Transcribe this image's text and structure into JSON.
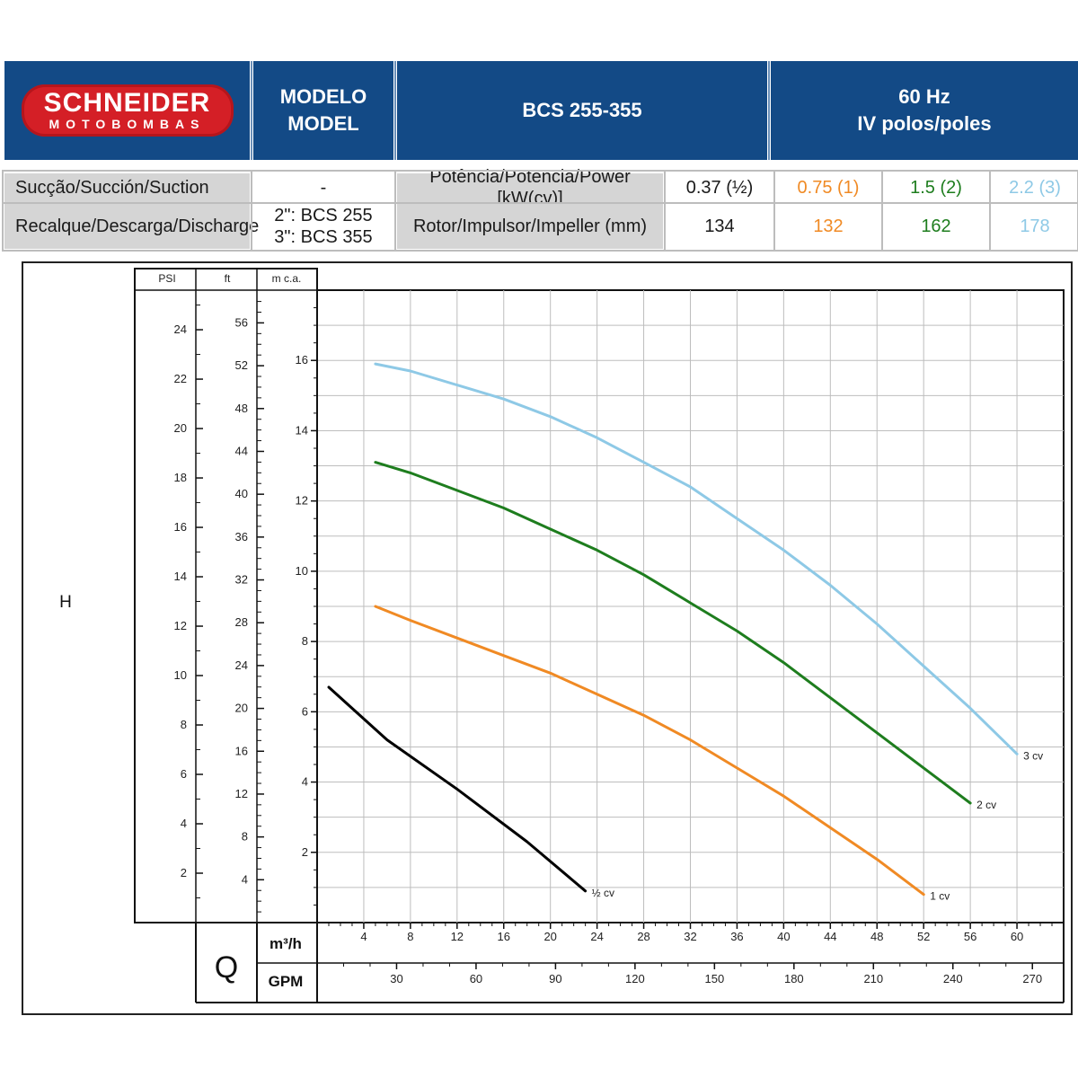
{
  "header": {
    "logo_main": "SCHNEIDER",
    "logo_sub": "MOTOBOMBAS",
    "model_line1": "MODELO",
    "model_line2": "MODEL",
    "model_range": "BCS 255-355",
    "freq_line1": "60 Hz",
    "freq_line2": "IV polos/poles"
  },
  "info_table": {
    "suction_label": "Sucção/Succión/Suction",
    "suction_value": "-",
    "discharge_label": "Recalque/Descarga/Discharge",
    "discharge_value_1": "2\": BCS 255",
    "discharge_value_2": "3\": BCS 355",
    "power_label": "Potência/Potencia/Power [kW(cv)]",
    "impeller_label": "Rotor/Impulsor/Impeller (mm)",
    "columns": [
      {
        "power": "0.37 (½)",
        "impeller": "134",
        "color": "#1a1a1a"
      },
      {
        "power": "0.75 (1)",
        "impeller": "132",
        "color": "#f08a24"
      },
      {
        "power": "1.5 (2)",
        "impeller": "162",
        "color": "#1e7d1e"
      },
      {
        "power": "2.2 (3)",
        "impeller": "178",
        "color": "#8ec9e6"
      }
    ]
  },
  "chart_data": {
    "type": "line",
    "ylabel": "H",
    "xlabel": "Q",
    "y_axes": [
      {
        "unit": "PSI",
        "ticks": [
          "2",
          "4",
          "6",
          "8",
          "10",
          "12",
          "14",
          "16",
          "18",
          "20",
          "22",
          "24"
        ]
      },
      {
        "unit": "ft",
        "ticks": [
          "4",
          "8",
          "12",
          "16",
          "20",
          "24",
          "28",
          "32",
          "36",
          "40",
          "44",
          "48",
          "52",
          "56"
        ]
      },
      {
        "unit": "m c.a.",
        "ticks": [
          "2",
          "4",
          "6",
          "8",
          "10",
          "12",
          "14",
          "16"
        ],
        "range": [
          0,
          18
        ]
      }
    ],
    "x_axes": [
      {
        "unit": "m³/h",
        "ticks": [
          "4",
          "8",
          "12",
          "16",
          "20",
          "24",
          "28",
          "32",
          "36",
          "40",
          "44",
          "48",
          "52",
          "56",
          "60"
        ],
        "range": [
          0,
          64
        ]
      },
      {
        "unit": "GPM",
        "ticks": [
          "30",
          "60",
          "90",
          "120",
          "150",
          "180",
          "210",
          "240",
          "270"
        ]
      }
    ],
    "grid": true,
    "series": [
      {
        "name": "½ cv",
        "color": "#000000",
        "x": [
          1,
          6,
          12,
          18,
          23
        ],
        "y": [
          6.7,
          5.2,
          3.8,
          2.3,
          0.9
        ]
      },
      {
        "name": "1 cv",
        "color": "#f08a24",
        "x": [
          5,
          8,
          12,
          16,
          20,
          24,
          28,
          32,
          36,
          40,
          44,
          48,
          52
        ],
        "y": [
          9.0,
          8.6,
          8.1,
          7.6,
          7.1,
          6.5,
          5.9,
          5.2,
          4.4,
          3.6,
          2.7,
          1.8,
          0.8
        ]
      },
      {
        "name": "2 cv",
        "color": "#1e7d1e",
        "x": [
          5,
          8,
          12,
          16,
          20,
          24,
          28,
          32,
          36,
          40,
          44,
          48,
          52,
          56
        ],
        "y": [
          13.1,
          12.8,
          12.3,
          11.8,
          11.2,
          10.6,
          9.9,
          9.1,
          8.3,
          7.4,
          6.4,
          5.4,
          4.4,
          3.4
        ]
      },
      {
        "name": "3 cv",
        "color": "#8ec9e6",
        "x": [
          5,
          8,
          12,
          16,
          20,
          24,
          28,
          32,
          36,
          40,
          44,
          48,
          52,
          56,
          60
        ],
        "y": [
          15.9,
          15.7,
          15.3,
          14.9,
          14.4,
          13.8,
          13.1,
          12.4,
          11.5,
          10.6,
          9.6,
          8.5,
          7.3,
          6.1,
          4.8
        ]
      }
    ]
  }
}
